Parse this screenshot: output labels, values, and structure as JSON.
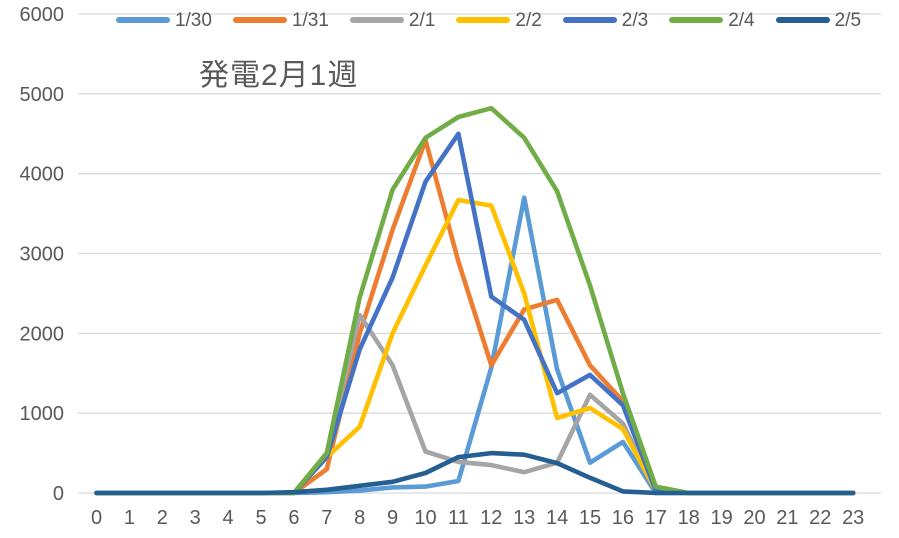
{
  "chart_data": {
    "type": "line",
    "title": "発電2月1週",
    "x": [
      0,
      1,
      2,
      3,
      4,
      5,
      6,
      7,
      8,
      9,
      10,
      11,
      12,
      13,
      14,
      15,
      16,
      17,
      18,
      19,
      20,
      21,
      22,
      23
    ],
    "x_labels": [
      "0",
      "1",
      "2",
      "3",
      "4",
      "5",
      "6",
      "7",
      "8",
      "9",
      "10",
      "11",
      "12",
      "13",
      "14",
      "15",
      "16",
      "17",
      "18",
      "19",
      "20",
      "21",
      "22",
      "23"
    ],
    "y_ticks": [
      0,
      1000,
      2000,
      3000,
      4000,
      5000,
      6000
    ],
    "ylim": [
      0,
      6000
    ],
    "grid": true,
    "legend_position": "top",
    "axis_text_color": "#595959",
    "gridline_color": "#d9d9d9",
    "series": [
      {
        "name": "1/30",
        "color": "#5B9BD5",
        "values": [
          0,
          0,
          0,
          0,
          0,
          0,
          0,
          10,
          30,
          70,
          80,
          150,
          1570,
          3700,
          1550,
          380,
          640,
          0,
          0,
          0,
          0,
          0,
          0,
          0
        ]
      },
      {
        "name": "1/31",
        "color": "#ED7D31",
        "values": [
          0,
          0,
          0,
          0,
          0,
          0,
          0,
          300,
          2000,
          3300,
          4420,
          2900,
          1600,
          2300,
          2420,
          1600,
          1150,
          30,
          0,
          0,
          0,
          0,
          0,
          0
        ]
      },
      {
        "name": "2/1",
        "color": "#A5A5A5",
        "values": [
          0,
          0,
          0,
          0,
          0,
          0,
          0,
          500,
          2230,
          1600,
          520,
          390,
          350,
          260,
          380,
          1230,
          870,
          30,
          0,
          0,
          0,
          0,
          0,
          0
        ]
      },
      {
        "name": "2/2",
        "color": "#FFC000",
        "values": [
          0,
          0,
          0,
          0,
          0,
          0,
          0,
          450,
          830,
          2000,
          2850,
          3670,
          3600,
          2500,
          940,
          1065,
          800,
          30,
          0,
          0,
          0,
          0,
          0,
          0
        ]
      },
      {
        "name": "2/3",
        "color": "#4472C4",
        "values": [
          0,
          0,
          0,
          0,
          0,
          0,
          0,
          450,
          1800,
          2700,
          3900,
          4500,
          2460,
          2170,
          1250,
          1480,
          1100,
          30,
          0,
          0,
          0,
          0,
          0,
          0
        ]
      },
      {
        "name": "2/4",
        "color": "#70AD47",
        "values": [
          0,
          0,
          0,
          0,
          0,
          0,
          0,
          500,
          2450,
          3800,
          4450,
          4710,
          4820,
          4450,
          3780,
          2600,
          1250,
          80,
          0,
          0,
          0,
          0,
          0,
          0
        ]
      },
      {
        "name": "2/5",
        "color": "#255E91",
        "values": [
          0,
          0,
          0,
          0,
          0,
          0,
          10,
          40,
          90,
          140,
          250,
          450,
          500,
          480,
          375,
          190,
          20,
          0,
          0,
          0,
          0,
          0,
          0,
          0
        ]
      }
    ]
  }
}
